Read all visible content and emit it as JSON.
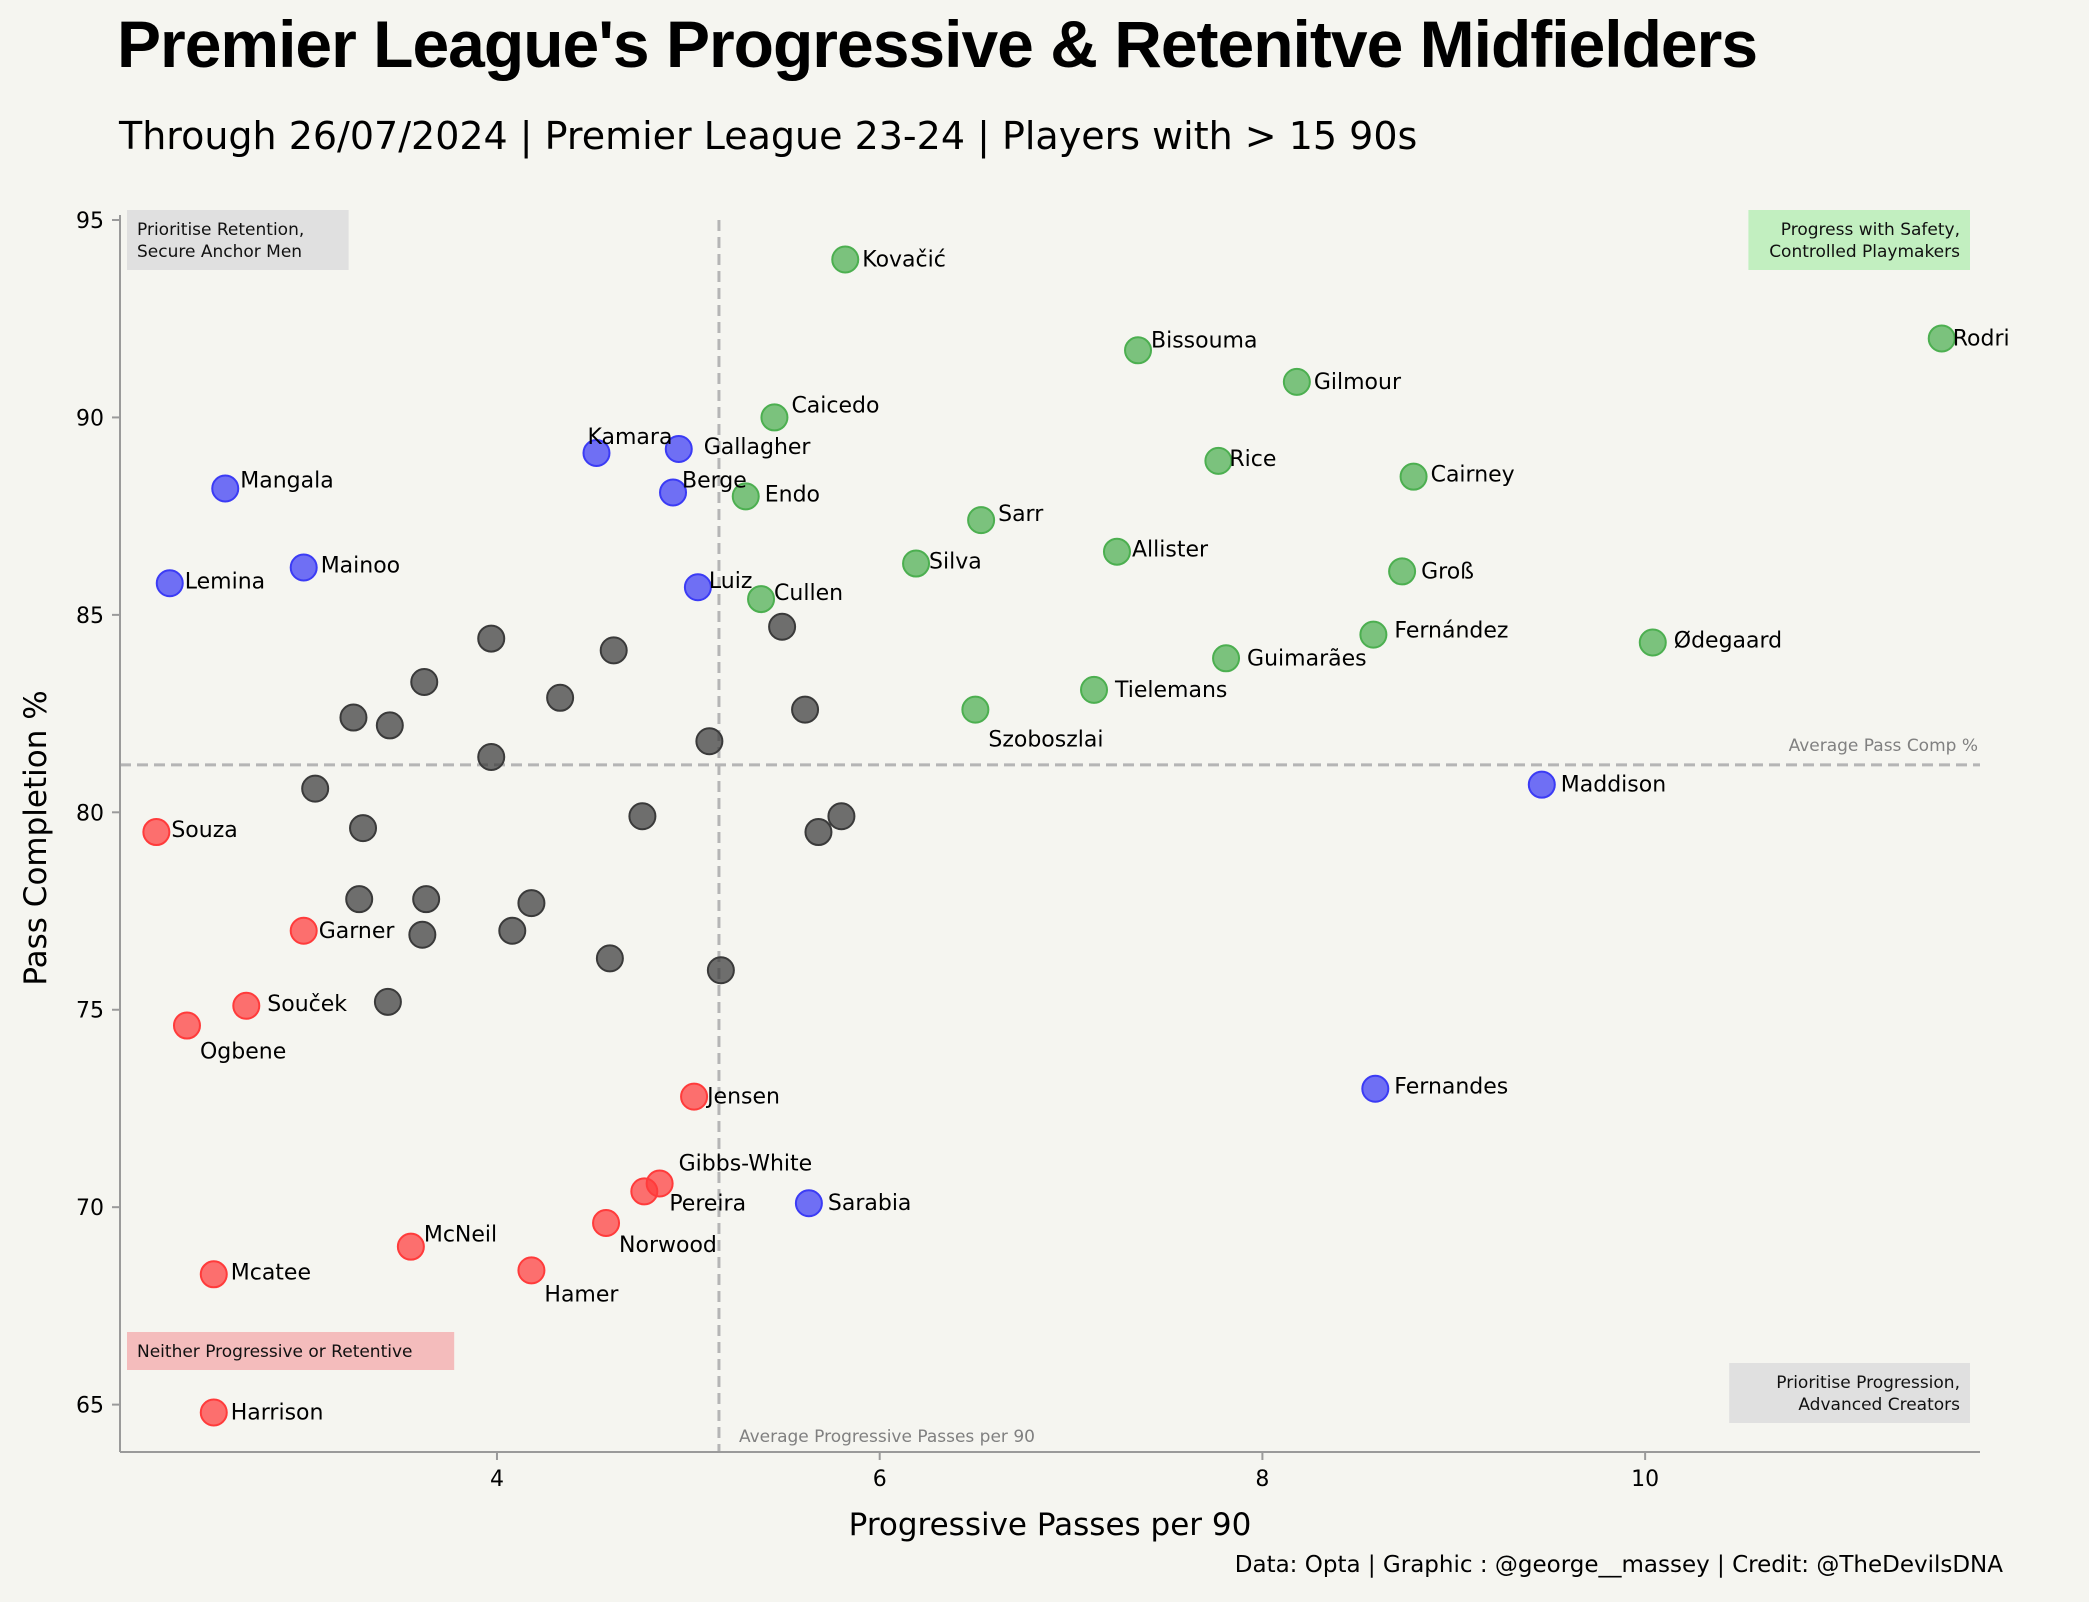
{
  "title": "Premier League's Progressive & Retenitve Midfielders",
  "subtitle": "Through 26/07/2024 | Premier League 23-24 | Players with > 15 90s",
  "footer": "Data: Opta | Graphic : @george__massey | Credit: @TheDevilsDNA",
  "colors": {
    "background": "#f5f5f0",
    "green": "#4caf50",
    "blue": "#3b3bf5",
    "red": "#ff3b3b",
    "grey": "#3a3a3a",
    "box_green": "#c2efc0",
    "box_red": "#f4bcbc",
    "box_grey": "#e0e0e0"
  },
  "chart_data": {
    "type": "scatter",
    "xlabel": "Progressive Passes per 90",
    "ylabel": "Pass Completion %",
    "xlim": [
      2.03,
      11.75
    ],
    "ylim": [
      63.8,
      95
    ],
    "xticks": [
      4,
      6,
      8,
      10
    ],
    "yticks": [
      65,
      70,
      75,
      80,
      85,
      90,
      95
    ],
    "avg_x": 5.16,
    "avg_y": 81.2,
    "avg_x_label": "Average Progressive Passes per 90",
    "avg_y_label": "Average Pass Comp %",
    "quadrant_labels": [
      {
        "lines": [
          "Prioritise Retention,",
          "Secure Anchor Men"
        ],
        "position": "top-left",
        "color": "grey"
      },
      {
        "lines": [
          "Progress with Safety,",
          "Controlled Playmakers"
        ],
        "position": "top-right",
        "color": "green"
      },
      {
        "lines": [
          "Neither Progressive or Retentive"
        ],
        "position": "bottom-left",
        "color": "red"
      },
      {
        "lines": [
          "Prioritise Progression,",
          "Advanced Creators"
        ],
        "position": "bottom-right",
        "color": "grey"
      }
    ],
    "points": [
      {
        "name": "Rodri",
        "x": 11.55,
        "y": 92.0,
        "group": "green"
      },
      {
        "name": "Kovačić",
        "x": 5.82,
        "y": 94.0,
        "group": "green"
      },
      {
        "name": "Bissouma",
        "x": 7.35,
        "y": 91.7,
        "group": "green"
      },
      {
        "name": "Gilmour",
        "x": 8.18,
        "y": 90.9,
        "group": "green"
      },
      {
        "name": "Caicedo",
        "x": 5.45,
        "y": 90.0,
        "group": "green"
      },
      {
        "name": "Rice",
        "x": 7.77,
        "y": 88.9,
        "group": "green"
      },
      {
        "name": "Cairney",
        "x": 8.79,
        "y": 88.5,
        "group": "green"
      },
      {
        "name": "Endo",
        "x": 5.3,
        "y": 88.0,
        "group": "green"
      },
      {
        "name": "Sarr",
        "x": 6.53,
        "y": 87.4,
        "group": "green"
      },
      {
        "name": "Allister",
        "x": 7.24,
        "y": 86.6,
        "group": "green"
      },
      {
        "name": "Silva",
        "x": 6.19,
        "y": 86.3,
        "group": "green"
      },
      {
        "name": "Groß",
        "x": 8.73,
        "y": 86.1,
        "group": "green"
      },
      {
        "name": "Cullen",
        "x": 5.38,
        "y": 85.4,
        "group": "green"
      },
      {
        "name": "Fernández",
        "x": 8.58,
        "y": 84.5,
        "group": "green"
      },
      {
        "name": "Ødegaard",
        "x": 10.04,
        "y": 84.3,
        "group": "green"
      },
      {
        "name": "Guimarães",
        "x": 7.81,
        "y": 83.9,
        "group": "green"
      },
      {
        "name": "Tielemans",
        "x": 7.12,
        "y": 83.1,
        "group": "green"
      },
      {
        "name": "Szoboszlai",
        "x": 6.5,
        "y": 82.6,
        "group": "green"
      },
      {
        "name": "Kamara",
        "x": 4.52,
        "y": 89.1,
        "group": "blue"
      },
      {
        "name": "Gallagher",
        "x": 4.95,
        "y": 89.2,
        "group": "blue"
      },
      {
        "name": "Mangala",
        "x": 2.58,
        "y": 88.2,
        "group": "blue"
      },
      {
        "name": "Berge",
        "x": 4.92,
        "y": 88.1,
        "group": "blue"
      },
      {
        "name": "Mainoo",
        "x": 2.99,
        "y": 86.2,
        "group": "blue"
      },
      {
        "name": "Lemina",
        "x": 2.29,
        "y": 85.8,
        "group": "blue"
      },
      {
        "name": "Luiz",
        "x": 5.05,
        "y": 85.7,
        "group": "blue"
      },
      {
        "name": "Maddison",
        "x": 9.46,
        "y": 80.7,
        "group": "blue"
      },
      {
        "name": "Fernandes",
        "x": 8.59,
        "y": 73.0,
        "group": "blue"
      },
      {
        "name": "Sarabia",
        "x": 5.63,
        "y": 70.1,
        "group": "blue"
      },
      {
        "name": "Souza",
        "x": 2.22,
        "y": 79.5,
        "group": "red"
      },
      {
        "name": "Garner",
        "x": 2.99,
        "y": 77.0,
        "group": "red"
      },
      {
        "name": "Souček",
        "x": 2.69,
        "y": 75.1,
        "group": "red"
      },
      {
        "name": "Ogbene",
        "x": 2.38,
        "y": 74.6,
        "group": "red"
      },
      {
        "name": "Jensen",
        "x": 5.03,
        "y": 72.8,
        "group": "red"
      },
      {
        "name": "Gibbs-White",
        "x": 4.85,
        "y": 70.6,
        "group": "red"
      },
      {
        "name": "Pereira",
        "x": 4.77,
        "y": 70.4,
        "group": "red"
      },
      {
        "name": "Norwood",
        "x": 4.57,
        "y": 69.6,
        "group": "red"
      },
      {
        "name": "McNeil",
        "x": 3.55,
        "y": 69.0,
        "group": "red"
      },
      {
        "name": "Hamer",
        "x": 4.18,
        "y": 68.4,
        "group": "red"
      },
      {
        "name": "Mcatee",
        "x": 2.52,
        "y": 68.3,
        "group": "red"
      },
      {
        "name": "Harrison",
        "x": 2.52,
        "y": 64.8,
        "group": "red"
      },
      {
        "name": "",
        "x": 3.97,
        "y": 84.4,
        "group": "grey"
      },
      {
        "name": "",
        "x": 4.61,
        "y": 84.1,
        "group": "grey"
      },
      {
        "name": "",
        "x": 5.49,
        "y": 84.7,
        "group": "grey"
      },
      {
        "name": "",
        "x": 3.62,
        "y": 83.3,
        "group": "grey"
      },
      {
        "name": "",
        "x": 4.33,
        "y": 82.9,
        "group": "grey"
      },
      {
        "name": "",
        "x": 5.61,
        "y": 82.6,
        "group": "grey"
      },
      {
        "name": "",
        "x": 3.25,
        "y": 82.4,
        "group": "grey"
      },
      {
        "name": "",
        "x": 3.44,
        "y": 82.2,
        "group": "grey"
      },
      {
        "name": "",
        "x": 5.11,
        "y": 81.8,
        "group": "grey"
      },
      {
        "name": "",
        "x": 3.97,
        "y": 81.4,
        "group": "grey"
      },
      {
        "name": "",
        "x": 3.05,
        "y": 80.6,
        "group": "grey"
      },
      {
        "name": "",
        "x": 4.76,
        "y": 79.9,
        "group": "grey"
      },
      {
        "name": "",
        "x": 5.8,
        "y": 79.9,
        "group": "grey"
      },
      {
        "name": "",
        "x": 3.3,
        "y": 79.6,
        "group": "grey"
      },
      {
        "name": "",
        "x": 5.68,
        "y": 79.5,
        "group": "grey"
      },
      {
        "name": "",
        "x": 3.28,
        "y": 77.8,
        "group": "grey"
      },
      {
        "name": "",
        "x": 3.63,
        "y": 77.8,
        "group": "grey"
      },
      {
        "name": "",
        "x": 4.18,
        "y": 77.7,
        "group": "grey"
      },
      {
        "name": "",
        "x": 4.08,
        "y": 77.0,
        "group": "grey"
      },
      {
        "name": "",
        "x": 3.61,
        "y": 76.9,
        "group": "grey"
      },
      {
        "name": "",
        "x": 4.59,
        "y": 76.3,
        "group": "grey"
      },
      {
        "name": "",
        "x": 5.17,
        "y": 76.0,
        "group": "grey"
      },
      {
        "name": "",
        "x": 3.43,
        "y": 75.2,
        "group": "grey"
      }
    ]
  }
}
